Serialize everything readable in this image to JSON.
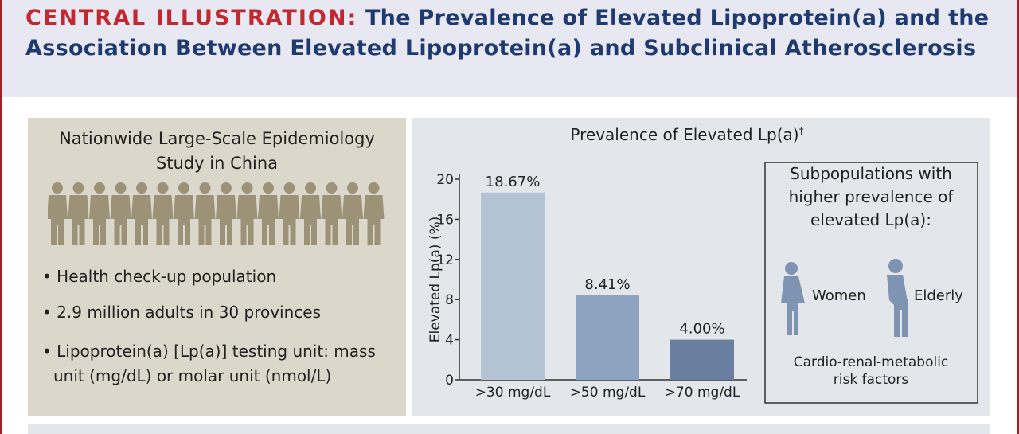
{
  "header": {
    "label": "CENTRAL ILLUSTRATION:",
    "title": "The Prevalence of Elevated Lipoprotein(a) and the Association Between Elevated Lipoprotein(a) and Subclinical Atherosclerosis"
  },
  "left_panel": {
    "title_lines": [
      "Nationwide Large-Scale Epidemiology",
      "Study in China"
    ],
    "bullets": [
      "Health check-up population",
      "2.9 million adults in 30 provinces",
      "Lipoprotein(a) [Lp(a)] testing unit: mass unit (mg/dL) or molar unit (nmol/L)"
    ]
  },
  "chart_data": {
    "type": "bar",
    "title": "Prevalence of Elevated Lp(a)",
    "title_note": "†",
    "y_label": "Elevated Lp(a) (%)",
    "categories": [
      ">30 mg/dL",
      ">50 mg/dL",
      ">70 mg/dL"
    ],
    "values": [
      18.67,
      8.41,
      4.0
    ],
    "value_labels": [
      "18.67%",
      "8.41%",
      "4.00%"
    ],
    "colors": [
      "#b4c4d5",
      "#8ea3c0",
      "#6a7ea0"
    ],
    "ylim": [
      0,
      20
    ],
    "yticks": [
      0,
      4,
      8,
      12,
      16,
      20
    ],
    "grid": false
  },
  "subpopulations": {
    "heading_lines": [
      "Subpopulations with",
      "higher prevalence of",
      "elevated Lp(a):"
    ],
    "groups": [
      "Women",
      "Elderly"
    ],
    "footer_lines": [
      "Cardio-renal-metabolic",
      "risk factors"
    ]
  }
}
